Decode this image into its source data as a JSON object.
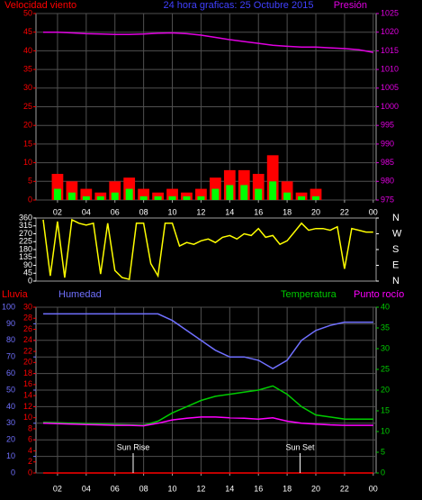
{
  "chart_data": [
    {
      "type": "bar",
      "title": "24 hora graficas: 25 Octubre 2015",
      "x": [
        1,
        2,
        3,
        4,
        5,
        6,
        7,
        8,
        9,
        10,
        11,
        12,
        13,
        14,
        15,
        16,
        17,
        18,
        19,
        20,
        21,
        22,
        23,
        24
      ],
      "xlim": [
        0.5,
        24.2
      ],
      "xticks": [
        {
          "value": 2,
          "label": "02"
        },
        {
          "value": 4,
          "label": "04"
        },
        {
          "value": 6,
          "label": "06"
        },
        {
          "value": 8,
          "label": "08"
        },
        10,
        12,
        14,
        16,
        18,
        20,
        22,
        {
          "value": 24,
          "label": "00"
        }
      ],
      "ylim": [
        0,
        50
      ],
      "yticks": [
        0,
        5,
        10,
        15,
        20,
        25,
        30,
        35,
        40,
        45,
        50
      ],
      "y2lim": [
        975,
        1025
      ],
      "y2ticks": [
        975,
        980,
        985,
        990,
        995,
        1000,
        1005,
        1010,
        1015,
        1020,
        1025
      ],
      "grid": true,
      "series": [
        {
          "name": "Velocidad viento",
          "type": "bar",
          "color": "#ff0000",
          "values": [
            0,
            7,
            5,
            3,
            2,
            5,
            6,
            3,
            2,
            3,
            2,
            3,
            6,
            8,
            8,
            7,
            12,
            5,
            2,
            3,
            0,
            0,
            0,
            0
          ]
        },
        {
          "type": "bar",
          "color": "#00ff00",
          "values": [
            0,
            3,
            2,
            1,
            1,
            2,
            3,
            1,
            1,
            1,
            1,
            1,
            3,
            4,
            4,
            3,
            5,
            2,
            1,
            1,
            0,
            0,
            0,
            0
          ]
        },
        {
          "name": "Presión",
          "type": "line",
          "axis": "y2",
          "color": "#e000e0",
          "values": [
            1020,
            1020,
            1019.8,
            1019.6,
            1019.5,
            1019.4,
            1019.4,
            1019.5,
            1019.7,
            1019.8,
            1019.6,
            1019.2,
            1018.6,
            1018,
            1017.5,
            1017,
            1016.5,
            1016.2,
            1016,
            1016,
            1015.8,
            1015.6,
            1015.3,
            1014.6
          ]
        }
      ]
    },
    {
      "type": "line",
      "x": [
        1,
        1.5,
        2,
        2.5,
        3,
        3.5,
        4,
        4.5,
        5,
        5.5,
        6,
        6.5,
        7,
        7.5,
        8,
        8.5,
        9,
        9.5,
        10,
        10.5,
        11,
        11.5,
        12,
        12.5,
        13,
        13.5,
        14,
        14.5,
        15,
        15.5,
        16,
        16.5,
        17,
        17.5,
        18,
        18.5,
        19,
        19.5,
        20,
        20.5,
        21,
        21.5,
        22,
        22.5,
        23,
        23.5,
        24
      ],
      "xlim": [
        0.5,
        24.2
      ],
      "ylim": [
        0,
        360
      ],
      "yticks": [
        0,
        45,
        90,
        135,
        180,
        225,
        270,
        315,
        360
      ],
      "y2lim": [
        0,
        360
      ],
      "y2ticks": [
        {
          "value": 0,
          "label": "N"
        },
        {
          "value": 90,
          "label": "E"
        },
        {
          "value": 180,
          "label": "S"
        },
        {
          "value": 270,
          "label": "W"
        },
        {
          "value": 360,
          "label": "N"
        }
      ],
      "grid": false,
      "series": [
        {
          "type": "line",
          "color": "#ffff00",
          "values": [
            350,
            30,
            340,
            20,
            350,
            330,
            320,
            330,
            40,
            330,
            60,
            20,
            10,
            330,
            330,
            100,
            30,
            330,
            330,
            200,
            220,
            210,
            230,
            240,
            220,
            250,
            260,
            240,
            270,
            260,
            300,
            250,
            260,
            210,
            230,
            280,
            330,
            290,
            300,
            300,
            290,
            310,
            70,
            300,
            290,
            280,
            280
          ]
        }
      ]
    },
    {
      "type": "line",
      "x": [
        1,
        2,
        3,
        4,
        5,
        6,
        7,
        8,
        9,
        10,
        11,
        12,
        13,
        14,
        15,
        16,
        17,
        18,
        19,
        20,
        21,
        22,
        23,
        24
      ],
      "xlim": [
        0.5,
        24.2
      ],
      "xticks": [
        {
          "value": 2,
          "label": "02"
        },
        {
          "value": 4,
          "label": "04"
        },
        {
          "value": 6,
          "label": "06"
        },
        {
          "value": 8,
          "label": "08"
        },
        10,
        12,
        14,
        16,
        18,
        20,
        22,
        {
          "value": 24,
          "label": "00"
        }
      ],
      "ylim": [
        0,
        100
      ],
      "yticks": [
        0,
        10,
        20,
        30,
        40,
        50,
        60,
        70,
        80,
        90,
        100
      ],
      "y2lim": [
        0,
        40
      ],
      "y2ticks": [
        0,
        5,
        10,
        15,
        20,
        25,
        30,
        35,
        40
      ],
      "y3lim": [
        0,
        30
      ],
      "y3ticks": [
        0,
        2,
        4,
        6,
        8,
        10,
        12,
        14,
        16,
        18,
        20,
        22,
        24,
        26,
        28,
        30
      ],
      "grid": true,
      "annotations": [
        {
          "text": "Sun Rise",
          "x": 7.27
        },
        {
          "text": "Sun Set",
          "x": 18.9
        }
      ],
      "series": [
        {
          "name": "Lluvia",
          "type": "line",
          "axis": "y3",
          "color": "#ff0000",
          "values": [
            0,
            0,
            0,
            0,
            0,
            0,
            0,
            0,
            0,
            0,
            0,
            0,
            0,
            0,
            0,
            0,
            0,
            0,
            0,
            0,
            0,
            0,
            0,
            0
          ]
        },
        {
          "name": "Humedad",
          "type": "line",
          "axis": "y",
          "color": "#7070ff",
          "values": [
            96,
            96,
            96,
            96,
            96,
            96,
            96,
            96,
            96,
            92,
            86,
            80,
            74,
            70,
            70,
            68,
            63,
            68,
            80,
            86,
            89,
            91,
            91,
            91
          ]
        },
        {
          "name": "Temperatura",
          "type": "line",
          "axis": "y2",
          "color": "#00cc00",
          "values": [
            12.2,
            12.1,
            12,
            11.9,
            11.8,
            11.7,
            11.6,
            11.5,
            12.5,
            14.5,
            16,
            17.5,
            18.5,
            19,
            19.5,
            20,
            21,
            19,
            16,
            14,
            13.5,
            13,
            13,
            13
          ]
        },
        {
          "name": "Punto rocío",
          "type": "line",
          "axis": "y2",
          "color": "#ff00ff",
          "values": [
            12,
            11.9,
            11.8,
            11.7,
            11.6,
            11.5,
            11.5,
            11.4,
            12,
            12.8,
            13.2,
            13.5,
            13.5,
            13.3,
            13.2,
            13,
            13.3,
            12.5,
            12,
            11.8,
            11.6,
            11.5,
            11.5,
            11.5
          ]
        }
      ]
    }
  ]
}
